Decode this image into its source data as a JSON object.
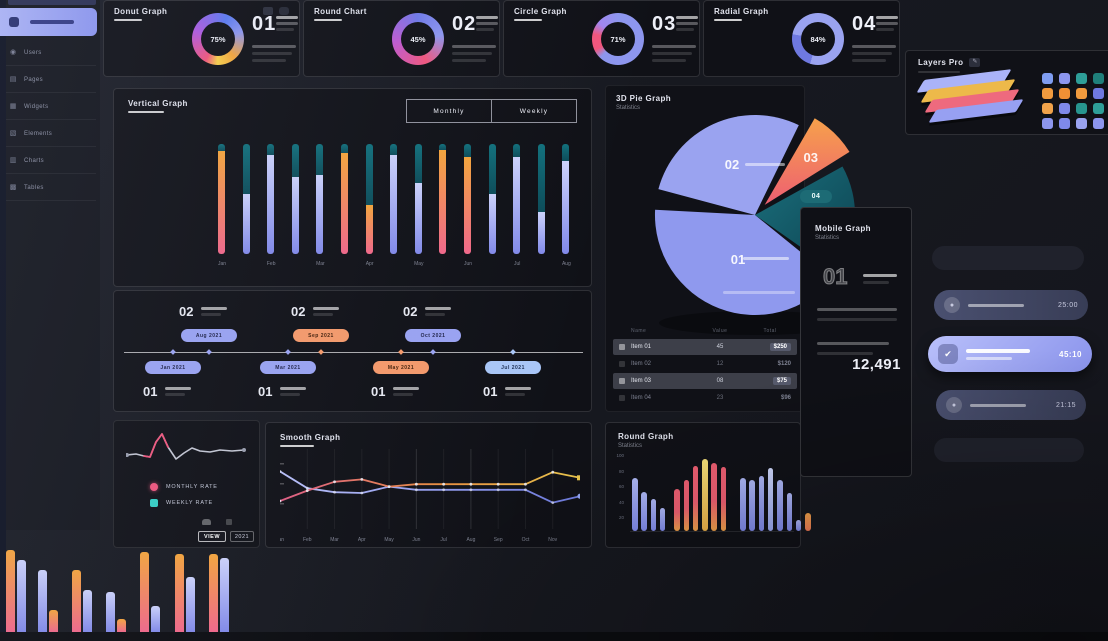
{
  "palette": {
    "canvas": "#181a22",
    "card": "#101117",
    "accent_periwinkle": "#8d96ee",
    "accent_orange": "#f5a53b",
    "accent_pink": "#f1567d",
    "accent_teal": "#135e69",
    "accent_yellow": "#ecc84e",
    "accent_mint": "#35d0c5"
  },
  "sidebar": {
    "items": [
      {
        "icon": "users-icon",
        "label": "Users"
      },
      {
        "icon": "pages-icon",
        "label": "Pages"
      },
      {
        "icon": "widgets-icon",
        "label": "Widgets"
      },
      {
        "icon": "elements-icon",
        "label": "Elements"
      },
      {
        "icon": "charts-icon",
        "label": "Charts"
      },
      {
        "icon": "tables-icon",
        "label": "Tables"
      }
    ]
  },
  "stat_cards": [
    {
      "title": "Donut Graph",
      "number": "01",
      "percent": "75%",
      "donut": "multi"
    },
    {
      "title": "Round Chart",
      "number": "02",
      "percent": "45%",
      "donut": "pink-blue"
    },
    {
      "title": "Circle Graph",
      "number": "03",
      "percent": "71%",
      "donut": "blue-pink"
    },
    {
      "title": "Radial Graph",
      "number": "04",
      "percent": "84%",
      "donut": "blue"
    }
  ],
  "bar_card": {
    "title": "Vertical Graph",
    "buttons": [
      "Monthly",
      "Weekly"
    ],
    "labels": [
      "Jan",
      "",
      "Feb",
      "",
      "Mar",
      "",
      "Apr",
      "",
      "May",
      "",
      "Jun",
      "",
      "Jul",
      "",
      "Aug"
    ],
    "bars": [
      {
        "teal": 0.06,
        "type": "warm"
      },
      {
        "teal": 0.45,
        "type": "cool"
      },
      {
        "teal": 0.1,
        "type": "cool"
      },
      {
        "teal": 0.3,
        "type": "cool"
      },
      {
        "teal": 0.28,
        "type": "cool"
      },
      {
        "teal": 0.08,
        "type": "warm"
      },
      {
        "teal": 0.55,
        "type": "warm"
      },
      {
        "teal": 0.1,
        "type": "cool"
      },
      {
        "teal": 0.35,
        "type": "cool"
      },
      {
        "teal": 0.05,
        "type": "warm"
      },
      {
        "teal": 0.12,
        "type": "warm"
      },
      {
        "teal": 0.45,
        "type": "cool"
      },
      {
        "teal": 0.12,
        "type": "cool"
      },
      {
        "teal": 0.62,
        "type": "cool"
      },
      {
        "teal": 0.15,
        "type": "cool"
      }
    ]
  },
  "timeline": {
    "top": [
      {
        "number": "02",
        "pill": "Aug 2021",
        "color": "periwinkle"
      },
      {
        "number": "02",
        "pill": "Sep 2021",
        "color": "orange"
      },
      {
        "number": "02",
        "pill": "Oct 2021",
        "color": "periwinkle"
      }
    ],
    "bottom": [
      {
        "number": "01",
        "pill": "Jan 2021",
        "color": "periwinkle"
      },
      {
        "number": "01",
        "pill": "Mar 2021",
        "color": "periwinkle"
      },
      {
        "number": "01",
        "pill": "May 2021",
        "color": "orange"
      },
      {
        "number": "01",
        "pill": "Jul 2021",
        "color": "blue"
      }
    ]
  },
  "pie_card": {
    "title": "3D Pie Graph",
    "subtitle": "Statistics",
    "badge": "04",
    "slices": [
      {
        "label": "01",
        "value": 40,
        "start": 129,
        "end": 273,
        "color": "#8f99ee"
      },
      {
        "label": "02",
        "value": 28,
        "start": 285,
        "end": 386,
        "color": "#9aa3f0"
      },
      {
        "label": "04",
        "value": 18,
        "start": 61,
        "end": 125,
        "color": "teal-gradient"
      },
      {
        "label": "03",
        "value": 8,
        "start": 30,
        "end": 58,
        "color": "orange-gradient",
        "explode": 14
      }
    ],
    "table": {
      "headers": [
        "Name",
        "Value",
        "Total"
      ],
      "rows": [
        {
          "name": "Item 01",
          "value": "45",
          "total": "$250",
          "highlight": true
        },
        {
          "name": "Item 02",
          "value": "12",
          "total": "$120",
          "highlight": false
        },
        {
          "name": "Item 03",
          "value": "08",
          "total": "$75",
          "highlight": true
        },
        {
          "name": "Item 04",
          "value": "23",
          "total": "$96",
          "highlight": false
        }
      ]
    }
  },
  "mobile_card": {
    "title": "Mobile Graph",
    "subtitle": "Statistics",
    "number": "01",
    "big_value": "12,491"
  },
  "layers_card": {
    "title": "Layers Pro",
    "layers": [
      "#aab3f8",
      "#edb94a",
      "#ee6a7e",
      "#97a0f2"
    ],
    "grid": [
      "#7f9df1",
      "#8d96ee",
      "#2e9e98",
      "#1f7f7a",
      "#f09a3e",
      "#ef8f35",
      "#f09a3e",
      "#6f79e0",
      "#f0a24a",
      "#7f89ea",
      "#27958f",
      "#2e9e98",
      "#8d96ee",
      "#7f89ea",
      "#9aa3f0",
      "#8d96ee"
    ]
  },
  "right_list": {
    "rows": [
      {
        "style": "empty",
        "time": "",
        "icon": ""
      },
      {
        "style": "medium",
        "time": "25:00",
        "icon": "user-icon"
      },
      {
        "style": "highlight",
        "time": "45:10",
        "icon": "shield-icon"
      },
      {
        "style": "medium",
        "time": "21:15",
        "icon": "user-icon"
      },
      {
        "style": "empty",
        "time": "",
        "icon": ""
      }
    ]
  },
  "spark_card": {
    "legend": [
      {
        "label": "Monthly Rate",
        "color": "#f1567d"
      },
      {
        "label": "Weekly Rate",
        "color": "#35d0c5"
      }
    ],
    "chip_primary": "VIEW",
    "chip_secondary": "2021",
    "points_main": [
      [
        0,
        24
      ],
      [
        10,
        23
      ],
      [
        18,
        25
      ],
      [
        24,
        26
      ],
      [
        30,
        11
      ],
      [
        36,
        3
      ],
      [
        42,
        16
      ],
      [
        50,
        28
      ],
      [
        58,
        22
      ],
      [
        66,
        17
      ],
      [
        74,
        20
      ],
      [
        84,
        21
      ],
      [
        94,
        19
      ],
      [
        106,
        20
      ],
      [
        118,
        19
      ]
    ],
    "points_accent": [
      [
        18,
        25
      ],
      [
        24,
        26
      ],
      [
        30,
        11
      ],
      [
        36,
        3
      ],
      [
        42,
        16
      ]
    ]
  },
  "smooth_card": {
    "title": "Smooth Graph",
    "x_labels": [
      "Jan",
      "Feb",
      "Mar",
      "Apr",
      "May",
      "Jun",
      "Jul",
      "Aug",
      "Sep",
      "Oct",
      "Nov"
    ],
    "series_warm": [
      65,
      52,
      41,
      38,
      47,
      44,
      44,
      44,
      44,
      44,
      29,
      36
    ],
    "series_cool": [
      28,
      49,
      54,
      55,
      47,
      51,
      51,
      51,
      51,
      51,
      67,
      59
    ]
  },
  "round_card": {
    "title": "Round Graph",
    "subtitle": "Statistics",
    "y_ticks": [
      "100",
      "80",
      "60",
      "40",
      "20"
    ],
    "bars": [
      {
        "v": 70,
        "c": "blue"
      },
      {
        "v": 52,
        "c": "blue"
      },
      {
        "v": 42,
        "c": "blue"
      },
      {
        "v": 30,
        "c": "blue"
      },
      {
        "v": 56,
        "c": "po"
      },
      {
        "v": 68,
        "c": "po"
      },
      {
        "v": 86,
        "c": "po"
      },
      {
        "v": 96,
        "c": "yellow"
      },
      {
        "v": 90,
        "c": "po"
      },
      {
        "v": 85,
        "c": "po"
      },
      {
        "v": 70,
        "c": "blue"
      },
      {
        "v": 68,
        "c": "blue"
      },
      {
        "v": 73,
        "c": "blue"
      },
      {
        "v": 84,
        "c": "lightblue"
      },
      {
        "v": 68,
        "c": "blue"
      },
      {
        "v": 50,
        "c": "blue"
      },
      {
        "v": 14,
        "c": "blue"
      },
      {
        "v": 24,
        "c": "orange"
      }
    ]
  },
  "corner_chart": {
    "groups": [
      [
        {
          "c": "warm",
          "h": 82
        },
        {
          "c": "cool",
          "h": 72
        }
      ],
      [
        {
          "c": "cool",
          "h": 62
        },
        {
          "c": "warm",
          "h": 22
        }
      ],
      [
        {
          "c": "warm",
          "h": 62
        },
        {
          "c": "cool",
          "h": 42
        }
      ],
      [
        {
          "c": "cool",
          "h": 40
        },
        {
          "c": "warm",
          "h": 13
        }
      ],
      [
        {
          "c": "warm",
          "h": 80
        },
        {
          "c": "cool",
          "h": 26
        }
      ],
      [
        {
          "c": "warm",
          "h": 78
        },
        {
          "c": "cool",
          "h": 55
        }
      ],
      [
        {
          "c": "warm",
          "h": 78
        },
        {
          "c": "cool",
          "h": 74
        }
      ]
    ]
  }
}
